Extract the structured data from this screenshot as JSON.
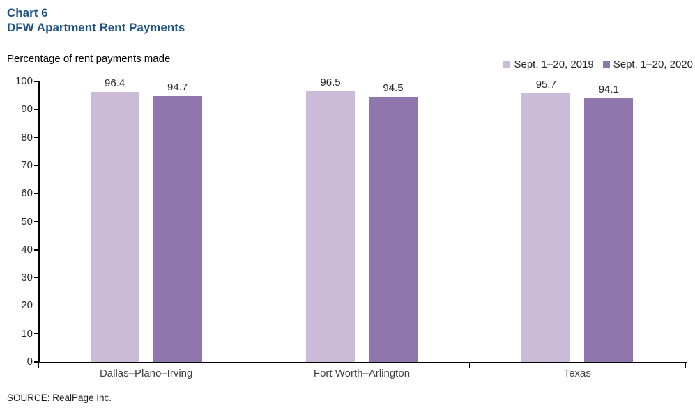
{
  "header": {
    "chart_number": "Chart 6",
    "title": "DFW Apartment Rent Payments"
  },
  "subtitle": "Percentage of rent payments made",
  "source": "SOURCE: RealPage Inc.",
  "colors": {
    "title_blue": "#1f5386",
    "series_2019": "#ccbad9",
    "series_2020": "#8f77ae",
    "axis": "#000000",
    "tick_text": "#262626"
  },
  "chart_data": {
    "type": "bar",
    "title": "DFW Apartment Rent Payments",
    "subtitle": "Percentage of rent payments made",
    "categories": [
      "Dallas–Plano–Irving",
      "Fort Worth–Arlington",
      "Texas"
    ],
    "series": [
      {
        "name": "Sept. 1–20, 2019",
        "color": "#ccbad9",
        "values": [
          96.4,
          96.5,
          95.7
        ]
      },
      {
        "name": "Sept. 1–20, 2020",
        "color": "#8f77ae",
        "values": [
          94.7,
          94.5,
          94.1
        ]
      }
    ],
    "xlabel": "",
    "ylabel": "Percentage of rent payments made",
    "ylim": [
      0,
      100
    ],
    "ytick_step": 10,
    "grid": false,
    "legend_position": "top-right",
    "value_labels": true
  }
}
